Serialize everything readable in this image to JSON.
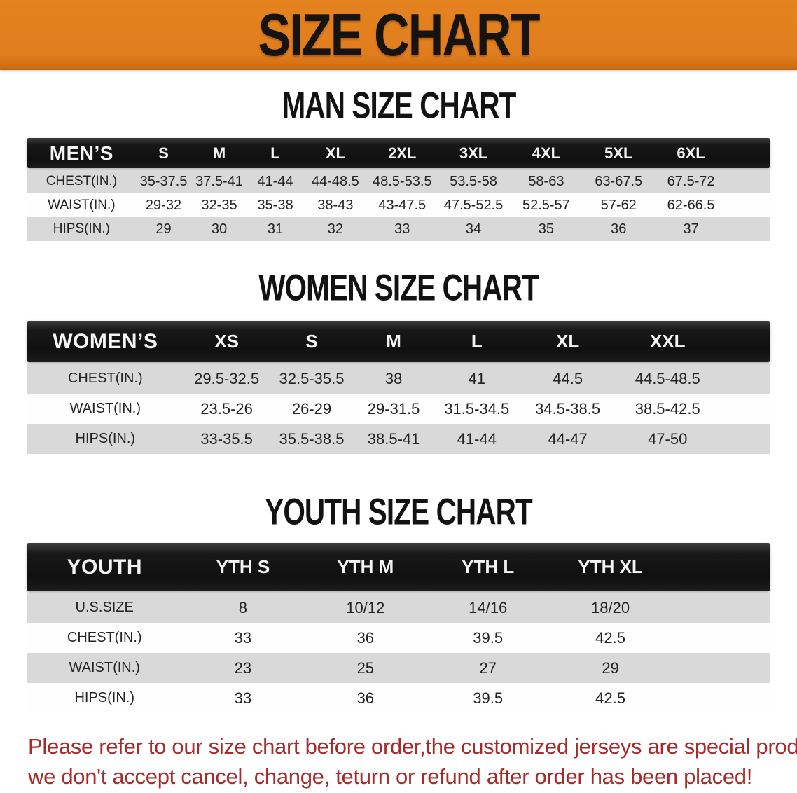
{
  "banner": {
    "title": "SIZE CHART",
    "bg_color": "#E07D1E",
    "text_color": "#161310"
  },
  "sections": [
    {
      "id": "men",
      "title": "MAN SIZE CHART",
      "header": [
        "MEN’S",
        "S",
        "M",
        "L",
        "XL",
        "2XL",
        "3XL",
        "4XL",
        "5XL",
        "6XL"
      ],
      "rows": [
        [
          "CHEST(IN.)",
          "35-37.5",
          "37.5-41",
          "41-44",
          "44-48.5",
          "48.5-53.5",
          "53.5-58",
          "58-63",
          "63-67.5",
          "67.5-72"
        ],
        [
          "WAIST(IN.)",
          "29-32",
          "32-35",
          "35-38",
          "38-43",
          "43-47.5",
          "47.5-52.5",
          "52.5-57",
          "57-62",
          "62-66.5"
        ],
        [
          "HIPS(IN.)",
          "29",
          "30",
          "31",
          "32",
          "33",
          "34",
          "35",
          "36",
          "37"
        ]
      ]
    },
    {
      "id": "women",
      "title": "WOMEN SIZE CHART",
      "header": [
        "WOMEN’S",
        "XS",
        "S",
        "M",
        "L",
        "XL",
        "XXL"
      ],
      "rows": [
        [
          "CHEST(IN.)",
          "29.5-32.5",
          "32.5-35.5",
          "38",
          "41",
          "44.5",
          "44.5-48.5"
        ],
        [
          "WAIST(IN.)",
          "23.5-26",
          "26-29",
          "29-31.5",
          "31.5-34.5",
          "34.5-38.5",
          "38.5-42.5"
        ],
        [
          "HIPS(IN.)",
          "33-35.5",
          "35.5-38.5",
          "38.5-41",
          "41-44",
          "44-47",
          "47-50"
        ]
      ]
    },
    {
      "id": "youth",
      "title": "YOUTH SIZE CHART",
      "header": [
        "YOUTH",
        "YTH S",
        "YTH M",
        "YTH L",
        "YTH XL"
      ],
      "rows": [
        [
          "U.S.SIZE",
          "8",
          "10/12",
          "14/16",
          "18/20"
        ],
        [
          "CHEST(IN.)",
          "33",
          "36",
          "39.5",
          "42.5"
        ],
        [
          "WAIST(IN.)",
          "23",
          "25",
          "27",
          "29"
        ],
        [
          "HIPS(IN.)",
          "33",
          "36",
          "39.5",
          "42.5"
        ]
      ]
    }
  ],
  "disclaimer": {
    "line1": "Please refer to our size chart before order,the customized jerseys are special products,",
    "line2": "we don't accept cancel, change, teturn or refund after order has been placed!",
    "color": "#A62B2A"
  },
  "colors": {
    "banner_orange": "#E07D1E",
    "header_black": "#141414",
    "stripe_gray": "#D9D9D9",
    "stripe_white": "#FEFEFE",
    "disclaimer_red": "#A62B2A"
  }
}
